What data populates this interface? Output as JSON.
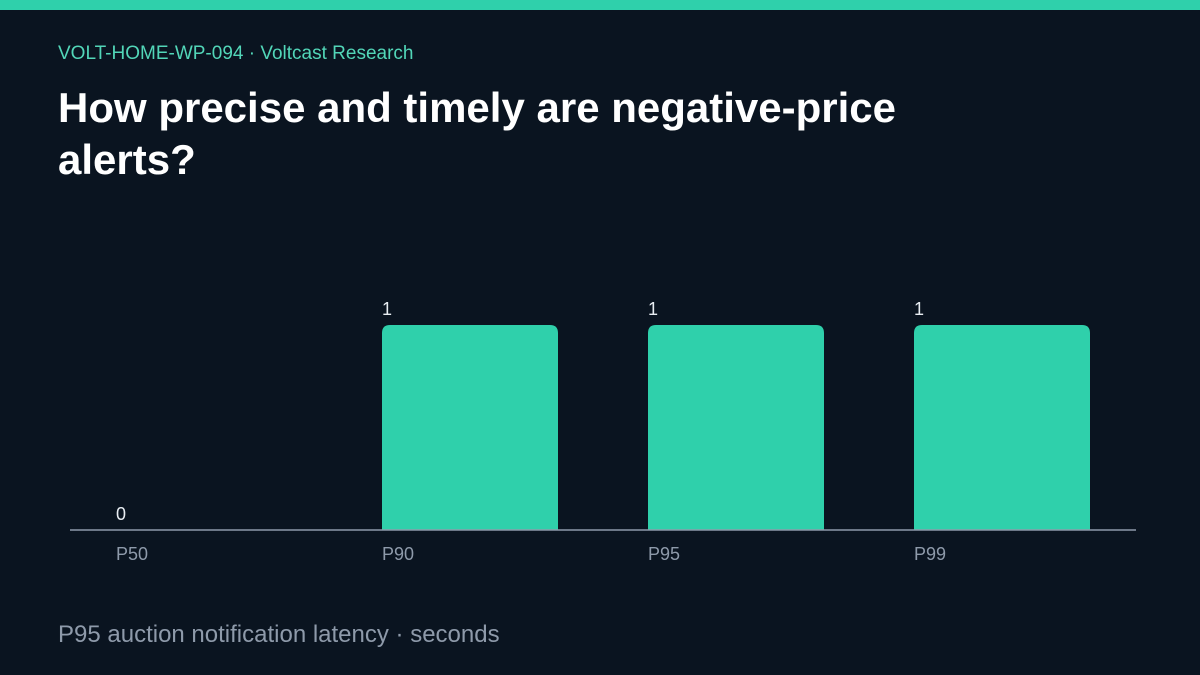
{
  "header": {
    "eyebrow": "VOLT-HOME-WP-094 · Voltcast Research",
    "title": "How precise and timely are negative-price alerts?"
  },
  "footer": {
    "caption": "P95 auction notification latency · seconds"
  },
  "colors": {
    "background": "#0a1420",
    "accent": "#2fd0ab",
    "eyebrow": "#52d6b8",
    "axis": "#8e9aaa",
    "text": "#e8edf2"
  },
  "chart_data": {
    "type": "bar",
    "categories": [
      "P50",
      "P90",
      "P95",
      "P99"
    ],
    "values": [
      0,
      1,
      1,
      1
    ],
    "data_labels": [
      "0",
      "1",
      "1",
      "1"
    ],
    "ylim": [
      0,
      1
    ],
    "grid": false,
    "legend": "none"
  }
}
